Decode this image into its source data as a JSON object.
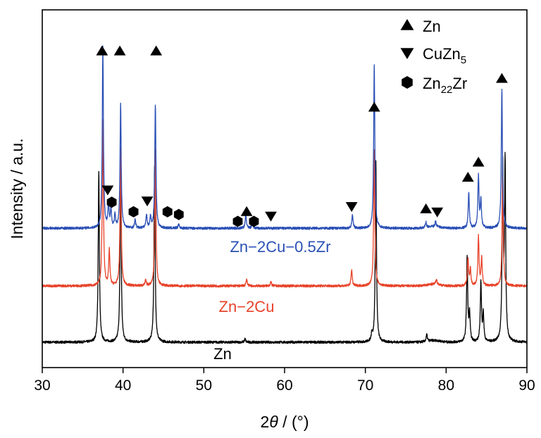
{
  "chart_data": {
    "type": "line",
    "xlabel_prefix": "2",
    "xlabel_symbol": "θ",
    "xlabel_suffix": " / (°)",
    "ylabel": "Intensity / a.u.",
    "xlim": [
      30,
      90
    ],
    "xticks": [
      "30",
      "40",
      "50",
      "60",
      "70",
      "80",
      "90"
    ],
    "grid": false,
    "legend_position": "top-right",
    "legend": [
      {
        "marker": "triangle-up",
        "label": "Zn",
        "sub": "",
        "tail": ""
      },
      {
        "marker": "triangle-down",
        "label": "CuZn",
        "sub": "5",
        "tail": ""
      },
      {
        "marker": "hexagon",
        "label": "Zn",
        "sub": "22",
        "tail": "Zr"
      }
    ],
    "series": [
      {
        "name": "Zn",
        "color": "#000000",
        "baseline": 0.0,
        "peaks": [
          [
            37.0,
            6.2
          ],
          [
            39.7,
            6.5
          ],
          [
            43.9,
            6.4
          ],
          [
            55.1,
            0.12
          ],
          [
            70.8,
            0.3
          ],
          [
            71.3,
            6.6
          ],
          [
            77.6,
            0.25
          ],
          [
            82.6,
            3.1
          ],
          [
            82.9,
            1.0
          ],
          [
            84.3,
            2.2
          ],
          [
            84.6,
            1.0
          ],
          [
            87.0,
            6.3
          ],
          [
            87.3,
            6.4
          ]
        ]
      },
      {
        "name": "Zn−2Cu",
        "color": "#e8432a",
        "baseline": 2.05,
        "peaks": [
          [
            37.5,
            6.0
          ],
          [
            38.3,
            1.3
          ],
          [
            39.7,
            5.0
          ],
          [
            42.8,
            0.2
          ],
          [
            44.0,
            5.0
          ],
          [
            55.3,
            0.25
          ],
          [
            58.3,
            0.15
          ],
          [
            68.3,
            0.6
          ],
          [
            71.1,
            5.0
          ],
          [
            78.8,
            0.2
          ],
          [
            82.7,
            1.0
          ],
          [
            83.0,
            0.6
          ],
          [
            84.0,
            1.8
          ],
          [
            84.4,
            1.0
          ],
          [
            87.0,
            4.0
          ]
        ]
      },
      {
        "name": "Zn−2Cu−0.5Zr",
        "color": "#2a4fb5",
        "baseline": 4.15,
        "peaks": [
          [
            37.5,
            6.6
          ],
          [
            38.2,
            0.8
          ],
          [
            38.5,
            0.7
          ],
          [
            39.0,
            0.45
          ],
          [
            39.7,
            4.5
          ],
          [
            41.5,
            0.3
          ],
          [
            42.9,
            0.5
          ],
          [
            43.4,
            0.4
          ],
          [
            44.0,
            4.5
          ],
          [
            46.9,
            0.15
          ],
          [
            55.2,
            0.5
          ],
          [
            56.0,
            0.2
          ],
          [
            68.4,
            0.5
          ],
          [
            71.1,
            6.0
          ],
          [
            77.5,
            0.2
          ],
          [
            78.7,
            0.2
          ],
          [
            82.8,
            1.3
          ],
          [
            84.0,
            1.9
          ],
          [
            84.3,
            1.0
          ],
          [
            86.9,
            5.1
          ]
        ]
      }
    ],
    "phase_markers": [
      {
        "marker": "triangle-up",
        "x": 37.4,
        "y": 10.6
      },
      {
        "marker": "triangle-up",
        "x": 39.6,
        "y": 10.6
      },
      {
        "marker": "triangle-up",
        "x": 44.1,
        "y": 10.6
      },
      {
        "marker": "triangle-up",
        "x": 55.3,
        "y": 4.75
      },
      {
        "marker": "triangle-up",
        "x": 71.1,
        "y": 8.55
      },
      {
        "marker": "triangle-up",
        "x": 77.5,
        "y": 4.85
      },
      {
        "marker": "triangle-up",
        "x": 82.7,
        "y": 6.0
      },
      {
        "marker": "triangle-up",
        "x": 84.0,
        "y": 6.55
      },
      {
        "marker": "triangle-up",
        "x": 86.9,
        "y": 9.6
      },
      {
        "marker": "triangle-down",
        "x": 38.1,
        "y": 5.55
      },
      {
        "marker": "triangle-down",
        "x": 43.0,
        "y": 5.15
      },
      {
        "marker": "triangle-down",
        "x": 58.3,
        "y": 4.6
      },
      {
        "marker": "triangle-down",
        "x": 68.3,
        "y": 4.95
      },
      {
        "marker": "triangle-down",
        "x": 78.9,
        "y": 4.75
      },
      {
        "marker": "hexagon",
        "x": 38.6,
        "y": 5.1
      },
      {
        "marker": "hexagon",
        "x": 41.3,
        "y": 4.75
      },
      {
        "marker": "hexagon",
        "x": 45.5,
        "y": 4.75
      },
      {
        "marker": "hexagon",
        "x": 46.9,
        "y": 4.65
      },
      {
        "marker": "hexagon",
        "x": 54.2,
        "y": 4.4
      },
      {
        "marker": "hexagon",
        "x": 56.2,
        "y": 4.4
      }
    ]
  }
}
